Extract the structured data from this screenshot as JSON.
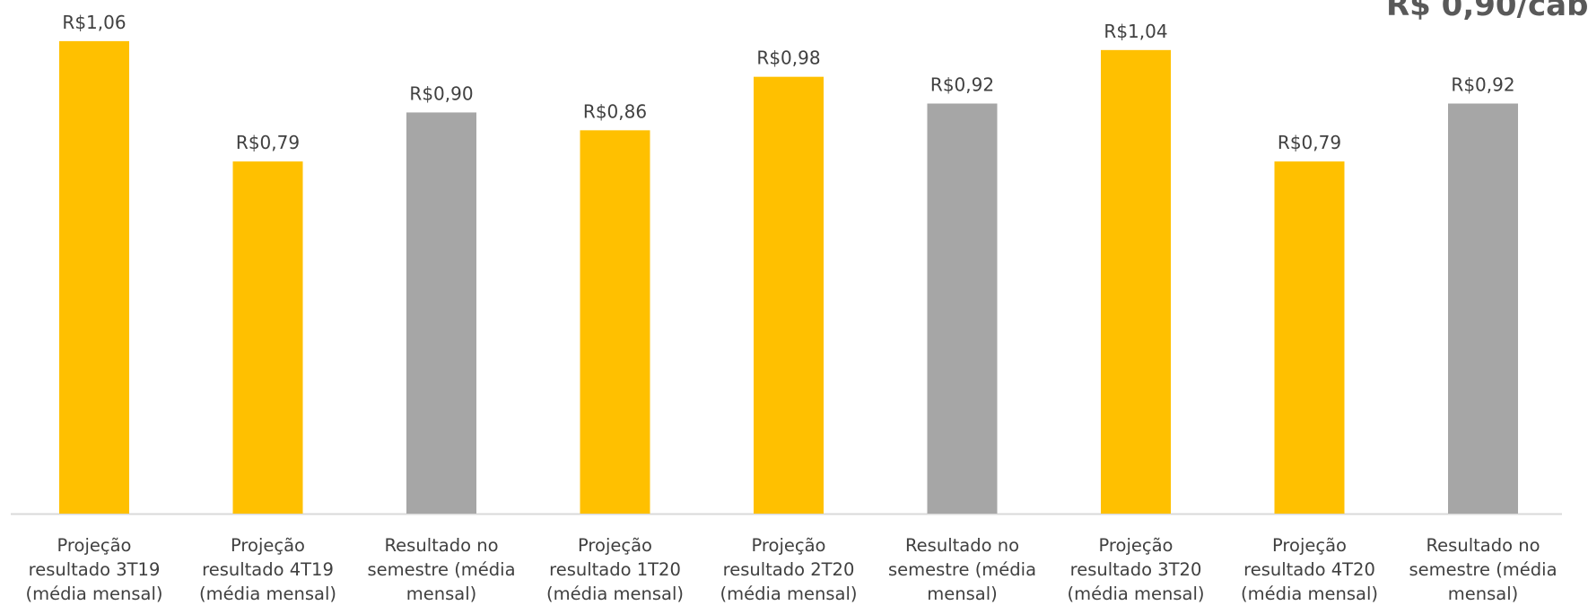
{
  "corner_title": "R$ 0,90/cab",
  "chart_data": {
    "type": "bar",
    "title": "R$ 0,90/cab",
    "xlabel": "",
    "ylabel": "",
    "ylim": [
      0,
      1.1
    ],
    "grid": false,
    "legend": "none",
    "categories": [
      [
        "Projeção",
        "resultado 3T19",
        "(média mensal)"
      ],
      [
        "Projeção",
        "resultado 4T19",
        "(média mensal)"
      ],
      [
        "Resultado no",
        "semestre (média",
        "mensal)"
      ],
      [
        "Projeção",
        "resultado 1T20",
        "(média mensal)"
      ],
      [
        "Projeção",
        "resultado 2T20",
        "(média mensal)"
      ],
      [
        "Resultado no",
        "semestre (média",
        "mensal)"
      ],
      [
        "Projeção",
        "resultado 3T20",
        "(média mensal)"
      ],
      [
        "Projeção",
        "resultado 4T20",
        "(média mensal)"
      ],
      [
        "Resultado no",
        "semestre (média",
        "mensal)"
      ]
    ],
    "values": [
      1.06,
      0.79,
      0.9,
      0.86,
      0.98,
      0.92,
      1.04,
      0.79,
      0.92
    ],
    "data_labels": [
      "R$1,06",
      "R$0,79",
      "R$0,90",
      "R$0,86",
      "R$0,98",
      "R$0,92",
      "R$1,04",
      "R$0,79",
      "R$0,92"
    ],
    "bar_kinds": [
      "projection",
      "projection",
      "result",
      "projection",
      "projection",
      "result",
      "projection",
      "projection",
      "result"
    ],
    "colors": {
      "projection": "#FFC000",
      "result": "#A6A6A6",
      "axis": "#D9D9D9",
      "label_text": "#404040"
    }
  }
}
